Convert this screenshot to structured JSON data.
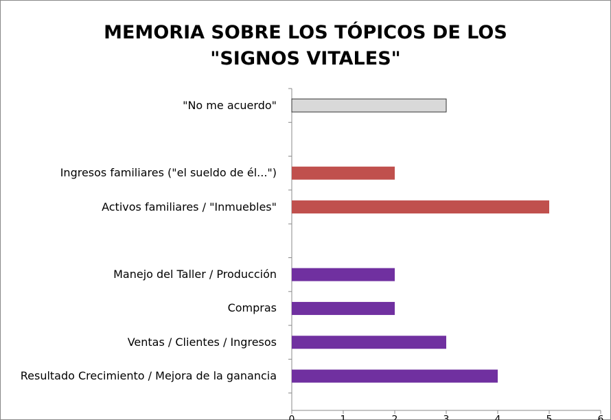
{
  "chart_data": {
    "type": "barh",
    "title": [
      "MEMORIA SOBRE LOS TÓPICOS DE LOS",
      "\"SIGNOS VITALES\""
    ],
    "categories": [
      "\"No me acuerdo\"",
      null,
      "Ingresos familiares (\"el sueldo de él...\")",
      "Activos familiares / \"Inmuebles\"",
      null,
      "Manejo del Taller / Producción",
      "Compras",
      "Ventas / Clientes / Ingresos",
      "Resultado Crecimiento / Mejora de la ganancia"
    ],
    "values": [
      3,
      null,
      2,
      5,
      null,
      2,
      2,
      3,
      4
    ],
    "colors": [
      "#d9d9d9",
      null,
      "#c0504d",
      "#c0504d",
      null,
      "#7030a0",
      "#7030a0",
      "#7030a0",
      "#7030a0"
    ],
    "xlim": [
      0,
      6
    ],
    "xticks": [
      0,
      1,
      2,
      3,
      4,
      5,
      6
    ],
    "grid": false
  }
}
